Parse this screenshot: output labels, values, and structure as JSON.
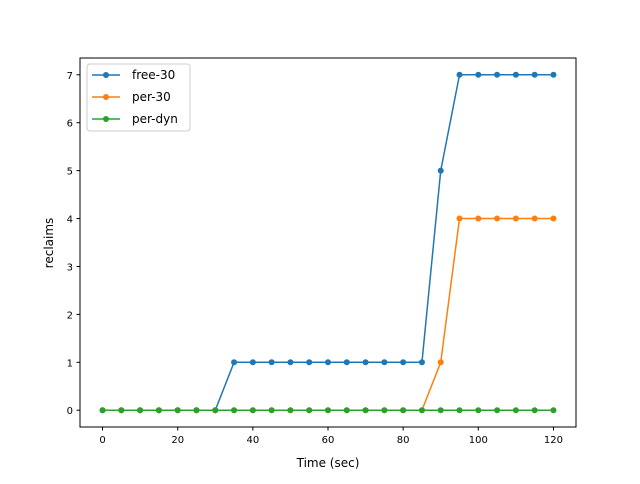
{
  "chart_data": {
    "type": "line",
    "title": "",
    "xlabel": "Time (sec)",
    "ylabel": "reclaims",
    "xlim": [
      -6,
      126
    ],
    "ylim": [
      -0.35,
      7.35
    ],
    "xticks": [
      0,
      20,
      40,
      60,
      80,
      100,
      120
    ],
    "yticks": [
      0,
      1,
      2,
      3,
      4,
      5,
      6,
      7
    ],
    "grid": false,
    "legend_position": "top-left",
    "x": [
      0,
      5,
      10,
      15,
      20,
      25,
      30,
      35,
      40,
      45,
      50,
      55,
      60,
      65,
      70,
      75,
      80,
      85,
      90,
      95,
      100,
      105,
      110,
      115,
      120
    ],
    "series": [
      {
        "name": "free-30",
        "color": "#1f77b4",
        "values": [
          0,
          0,
          0,
          0,
          0,
          0,
          0,
          1,
          1,
          1,
          1,
          1,
          1,
          1,
          1,
          1,
          1,
          1,
          5,
          7,
          7,
          7,
          7,
          7,
          7
        ]
      },
      {
        "name": "per-30",
        "color": "#ff7f0e",
        "values": [
          0,
          0,
          0,
          0,
          0,
          0,
          0,
          0,
          0,
          0,
          0,
          0,
          0,
          0,
          0,
          0,
          0,
          0,
          1,
          4,
          4,
          4,
          4,
          4,
          4
        ]
      },
      {
        "name": "per-dyn",
        "color": "#2ca02c",
        "values": [
          0,
          0,
          0,
          0,
          0,
          0,
          0,
          0,
          0,
          0,
          0,
          0,
          0,
          0,
          0,
          0,
          0,
          0,
          0,
          0,
          0,
          0,
          0,
          0,
          0
        ]
      }
    ]
  }
}
